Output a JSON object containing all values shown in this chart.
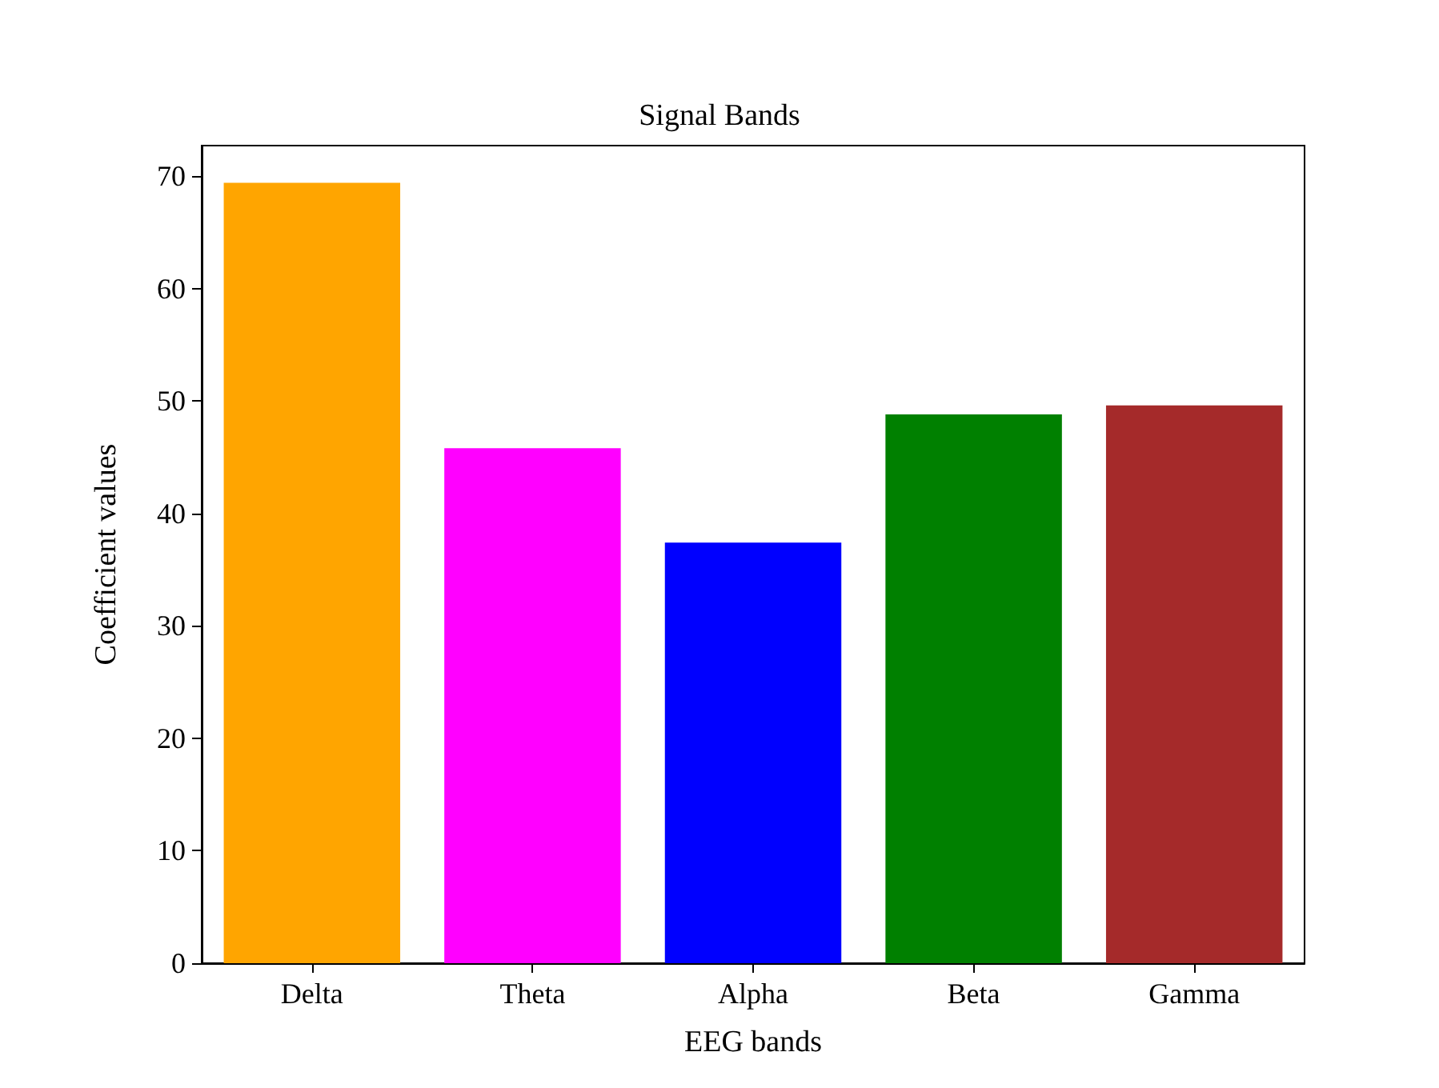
{
  "chart_data": {
    "type": "bar",
    "title": "Signal Bands",
    "xlabel": "EEG bands",
    "ylabel": "Coefficient values",
    "categories": [
      "Delta",
      "Theta",
      "Alpha",
      "Beta",
      "Gamma"
    ],
    "values": [
      69.4,
      45.8,
      37.4,
      48.8,
      49.6
    ],
    "colors": [
      "#ffa500",
      "#ff00ff",
      "#0000ff",
      "#008000",
      "#a52a2a"
    ],
    "ylim": [
      0,
      72.7
    ],
    "yticks": [
      0,
      10,
      20,
      30,
      40,
      50,
      60,
      70
    ],
    "grid": false
  }
}
